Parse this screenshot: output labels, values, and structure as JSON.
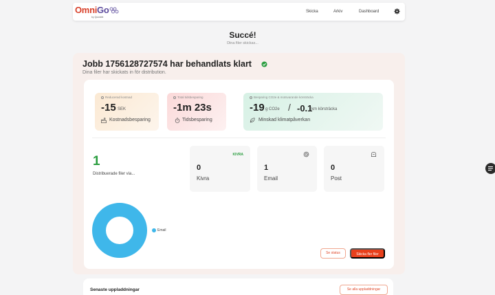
{
  "brand": {
    "omni": "Omni",
    "go": "Go",
    "sub": "by Quickbit"
  },
  "nav": {
    "items": [
      {
        "label": "Skicka"
      },
      {
        "label": "Arkiv"
      },
      {
        "label": "Dashboard"
      }
    ],
    "settings_icon": "gear-icon"
  },
  "page": {
    "title": "Succé!",
    "subtitle": "Dina filer skickas..."
  },
  "job": {
    "title": "Jobb 1756128727574 har behandlats klart",
    "subtitle": "Dina filer har skickats in för distribution.",
    "status_icon": "check-circle-icon"
  },
  "stats": {
    "cost": {
      "label": "Reducerad kostnad",
      "value": "-15",
      "unit": "SEK",
      "caption": "Kostnadsbesparing",
      "icon": "factory-icon"
    },
    "time": {
      "label": "Total tidsbesparing",
      "value": "-1m 23s",
      "caption": "Tidsbesparing",
      "icon": "stopwatch-icon"
    },
    "co2": {
      "label": "Besparing CO2e & motsvarande körsträcka",
      "value": "-19",
      "unit": "g CO2e",
      "separator": "/",
      "distance_value": "-0.1",
      "distance_unit": "km körsträcka",
      "caption": "Minskad klimatpåverkan",
      "icon": "leaf-icon"
    }
  },
  "distribution": {
    "count": "1",
    "label": "Distribuerade filer via...",
    "channels": [
      {
        "badge": "KIVRA",
        "count": "0",
        "name": "Kivra"
      },
      {
        "icon": "at-icon",
        "count": "1",
        "name": "Email"
      },
      {
        "icon": "mailbox-icon",
        "count": "0",
        "name": "Post"
      }
    ]
  },
  "chart_data": {
    "type": "pie",
    "categories": [
      "Email"
    ],
    "values": [
      1
    ],
    "colors": [
      "#3fb7ea"
    ],
    "legend": "right"
  },
  "actions": {
    "status_label": "Se status",
    "send_more_label": "Skicka fler filer"
  },
  "uploads": {
    "title": "Senaste uppladdningar",
    "see_all_label": "Se alla uppladdningar"
  },
  "colors": {
    "accent": "#e8401c",
    "success": "#2a9d3f",
    "email": "#3fb7ea"
  }
}
